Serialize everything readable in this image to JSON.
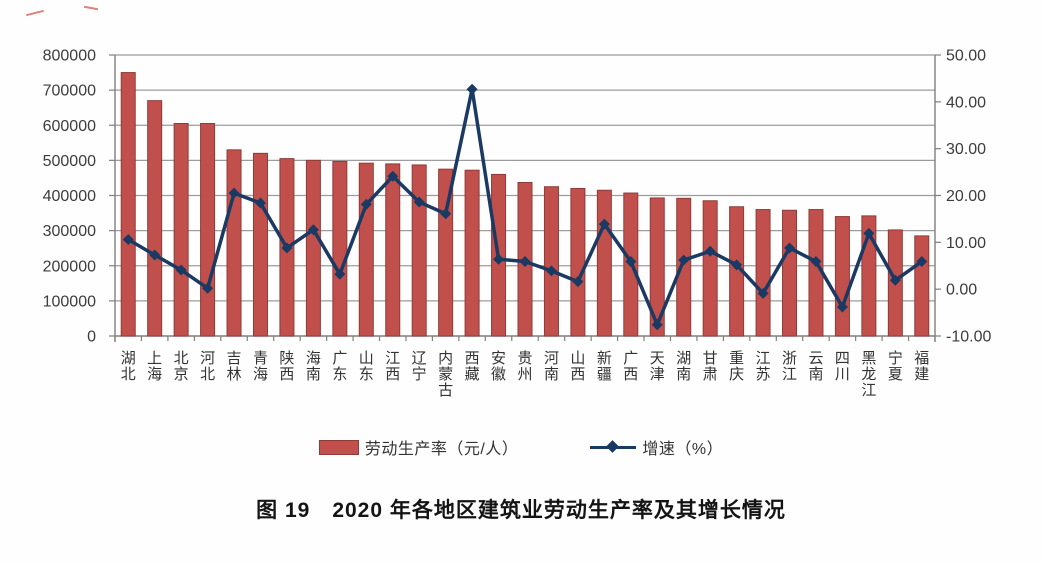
{
  "caption": "图 19　2020 年各地区建筑业劳动生产率及其增长情况",
  "legend": {
    "bar_label": "劳动生产率（元/人）",
    "line_label": "增速（%）"
  },
  "colors": {
    "bar_fill": "#c1504c",
    "bar_border": "#8f3b37",
    "line": "#1a3a63",
    "gridline": "#9c9c9c",
    "axis": "#7f7f7f",
    "tick_text": "#3c3c3c"
  },
  "chart_data": {
    "type": "bar",
    "subtype": "combo-bar-line",
    "title": "图 19　2020 年各地区建筑业劳动生产率及其增长情况",
    "categories": [
      "湖北",
      "上海",
      "北京",
      "河北",
      "吉林",
      "青海",
      "陕西",
      "海南",
      "广东",
      "山东",
      "江西",
      "辽宁",
      "内蒙古",
      "西藏",
      "安徽",
      "贵州",
      "河南",
      "山西",
      "新疆",
      "广西",
      "天津",
      "湖南",
      "甘肃",
      "重庆",
      "江苏",
      "浙江",
      "云南",
      "四川",
      "黑龙江",
      "宁夏",
      "福建"
    ],
    "series": [
      {
        "name": "劳动生产率（元/人）",
        "type": "bar",
        "axis": "left",
        "values": [
          750000,
          670000,
          605000,
          605000,
          530000,
          520000,
          505000,
          500000,
          497000,
          492000,
          490000,
          487000,
          475000,
          472000,
          460000,
          437000,
          425000,
          420000,
          415000,
          407000,
          393000,
          392000,
          385000,
          368000,
          360000,
          358000,
          360000,
          340000,
          342000,
          302000,
          285000
        ]
      },
      {
        "name": "增速（%）",
        "type": "line",
        "axis": "right",
        "values": [
          10.6,
          7.3,
          4.1,
          0.2,
          20.5,
          18.4,
          8.8,
          12.7,
          3.2,
          18.1,
          24.1,
          18.6,
          16.1,
          42.7,
          6.4,
          5.9,
          3.9,
          1.6,
          13.9,
          5.9,
          -7.6,
          6.2,
          8.1,
          5.2,
          -0.9,
          8.8,
          5.9,
          -3.8,
          11.9,
          1.9,
          5.9
        ]
      }
    ],
    "left_axis": {
      "min": 0,
      "max": 800000,
      "step": 100000,
      "ticks": [
        "800000",
        "700000",
        "600000",
        "500000",
        "400000",
        "300000",
        "200000",
        "100000",
        "0"
      ]
    },
    "right_axis": {
      "min": -10,
      "max": 50,
      "step": 10,
      "ticks": [
        "50.00",
        "40.00",
        "30.00",
        "20.00",
        "10.00",
        "0.00",
        "-10.00"
      ]
    },
    "grid": true,
    "legend_position": "bottom"
  }
}
